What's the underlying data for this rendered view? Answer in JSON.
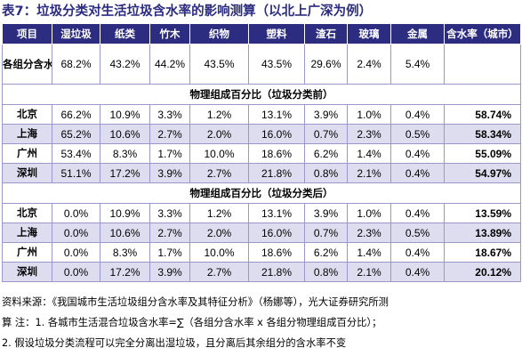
{
  "title": "表7：垃圾分类对生活垃圾含水率的影响测算（以北上广深为例）",
  "header": [
    "项目",
    "湿垃圾",
    "纸类",
    "竹木",
    "织物",
    "塑料",
    "渣石",
    "玻璃",
    "金属",
    "含水率（城市）"
  ],
  "moisture_row": {
    "label": "各组分含水率",
    "values": [
      "68.2%",
      "43.2%",
      "44.2%",
      "43.5%",
      "43.5%",
      "29.6%",
      "2.4%",
      "5.4%",
      ""
    ]
  },
  "section_before": {
    "title": "物理组成百分比（垃圾分类前）",
    "rows": [
      {
        "city": "北京",
        "values": [
          "66.2%",
          "10.9%",
          "3.3%",
          "1.2%",
          "13.1%",
          "3.9%",
          "1.0%",
          "0.4%"
        ],
        "rate": "58.74%"
      },
      {
        "city": "上海",
        "values": [
          "65.2%",
          "10.6%",
          "2.7%",
          "2.0%",
          "16.0%",
          "0.7%",
          "2.3%",
          "0.5%"
        ],
        "rate": "58.34%"
      },
      {
        "city": "广州",
        "values": [
          "53.4%",
          "8.3%",
          "1.7%",
          "10.0%",
          "18.6%",
          "6.2%",
          "1.4%",
          "0.4%"
        ],
        "rate": "55.09%"
      },
      {
        "city": "深圳",
        "values": [
          "51.1%",
          "17.2%",
          "3.9%",
          "2.7%",
          "21.8%",
          "0.8%",
          "2.1%",
          "0.4%"
        ],
        "rate": "54.97%"
      }
    ]
  },
  "section_after": {
    "title": "物理组成百分比（垃圾分类后）",
    "rows": [
      {
        "city": "北京",
        "values": [
          "0.0%",
          "10.9%",
          "3.3%",
          "1.2%",
          "13.1%",
          "3.9%",
          "1.0%",
          "0.4%"
        ],
        "rate": "13.59%"
      },
      {
        "city": "上海",
        "values": [
          "0.0%",
          "10.6%",
          "2.7%",
          "2.0%",
          "16.0%",
          "0.7%",
          "2.3%",
          "0.5%"
        ],
        "rate": "13.89%"
      },
      {
        "city": "广州",
        "values": [
          "0.0%",
          "8.3%",
          "1.7%",
          "10.0%",
          "18.6%",
          "6.2%",
          "1.4%",
          "0.4%"
        ],
        "rate": "18.67%"
      },
      {
        "city": "深圳",
        "values": [
          "0.0%",
          "17.2%",
          "3.9%",
          "2.7%",
          "21.8%",
          "0.8%",
          "2.1%",
          "0.4%"
        ],
        "rate": "20.12%"
      }
    ]
  },
  "notes": [
    "资料来源：《我国城市生活垃圾组分含水率及其特征分析》（杨娜等），光大证券研究所测",
    "算  注：1. 各城市生活混合垃圾含水率=∑（各组分含水率 x 各组分物理组成百分比）；",
    "2. 假设垃圾分类流程可以完全分离出湿垃圾，且分离后其余组分的含水率不变"
  ],
  "colors": {
    "header_bg": "#2c2c80",
    "row_shade": "#dedcef",
    "border": "#9a98c9",
    "title": "#2c2c80"
  }
}
